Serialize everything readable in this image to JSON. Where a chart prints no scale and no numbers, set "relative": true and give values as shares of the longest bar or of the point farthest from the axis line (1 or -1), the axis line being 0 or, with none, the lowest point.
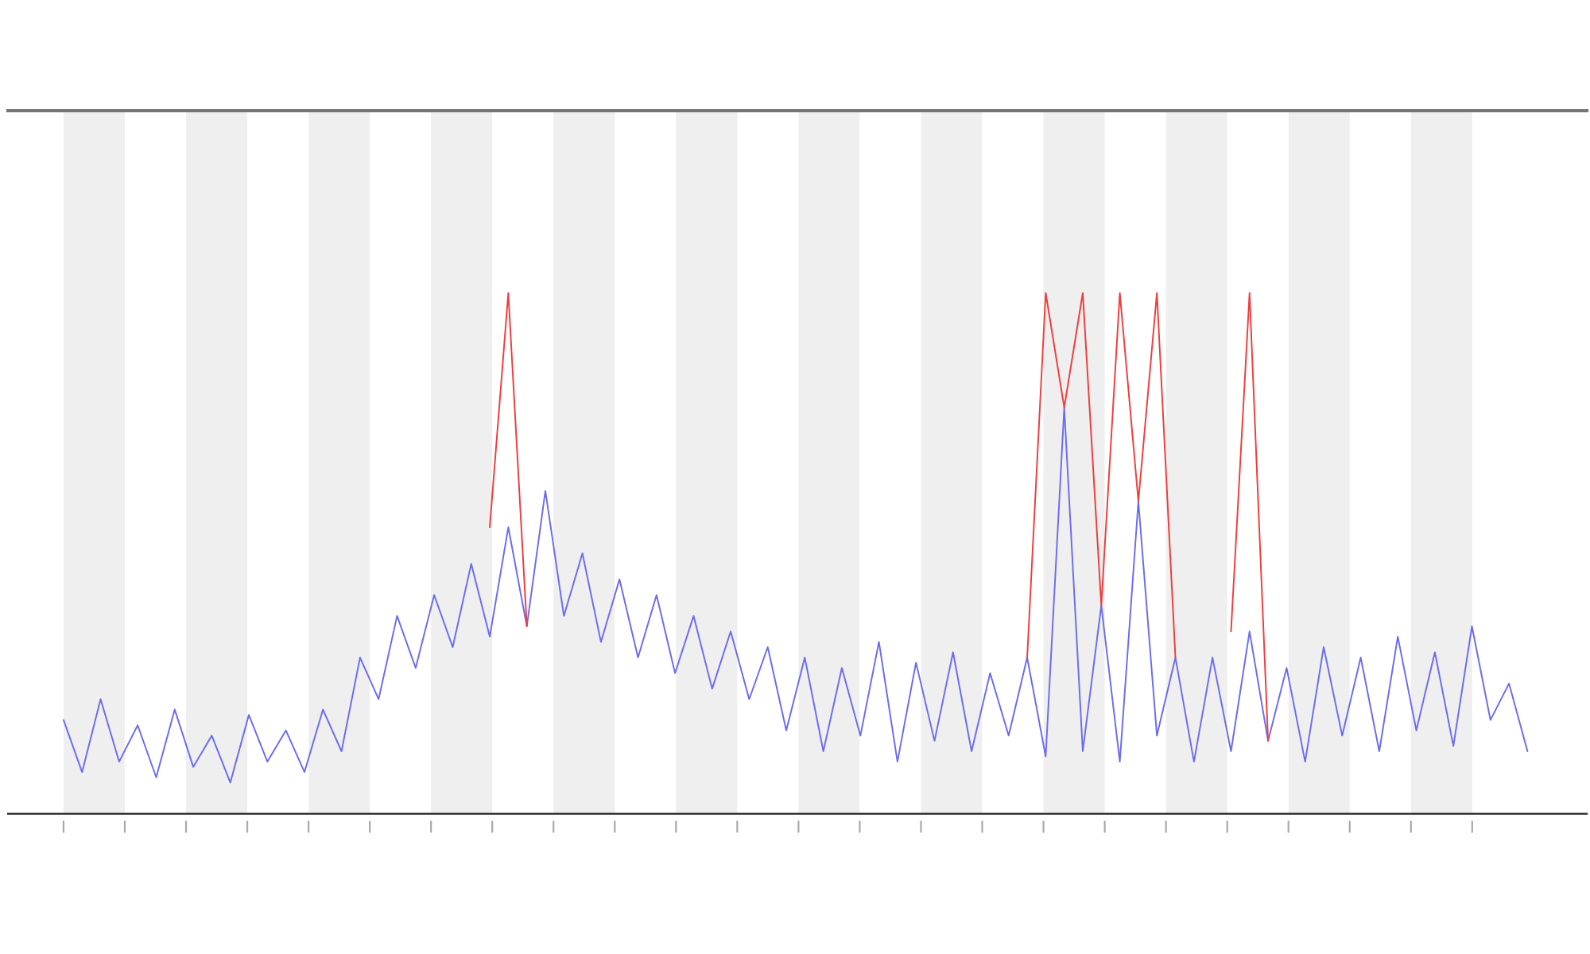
{
  "chart_data": {
    "type": "line",
    "relative": true,
    "grid": false,
    "categories": [
      null,
      null,
      null,
      null,
      null,
      null,
      null,
      null,
      null,
      null,
      null,
      null,
      null,
      null,
      null,
      null,
      null,
      null,
      null,
      null,
      null,
      null,
      null,
      null,
      null,
      null,
      null,
      null,
      null,
      null,
      null,
      null,
      null,
      null,
      null,
      null,
      null,
      null,
      null,
      null,
      null,
      null,
      null,
      null,
      null,
      null,
      null,
      null,
      null,
      null,
      null,
      null,
      null,
      null,
      null,
      null,
      null,
      null,
      null,
      null,
      null,
      null,
      null,
      null,
      null,
      null,
      null,
      null,
      null,
      null,
      null,
      null,
      null,
      null,
      null,
      null,
      null,
      null,
      null,
      null
    ],
    "series": [
      {
        "color": "#6b6bf0",
        "values": [
          0.18,
          0.08,
          0.22,
          0.1,
          0.17,
          0.07,
          0.2,
          0.09,
          0.15,
          0.06,
          0.19,
          0.1,
          0.16,
          0.08,
          0.2,
          0.12,
          0.3,
          0.22,
          0.38,
          0.28,
          0.42,
          0.32,
          0.48,
          0.34,
          0.55,
          0.36,
          0.62,
          0.38,
          0.5,
          0.33,
          0.45,
          0.3,
          0.42,
          0.27,
          0.38,
          0.24,
          0.35,
          0.22,
          0.32,
          0.16,
          0.3,
          0.12,
          0.28,
          0.15,
          0.33,
          0.1,
          0.29,
          0.14,
          0.31,
          0.12,
          0.27,
          0.15,
          0.3,
          0.11,
          0.78,
          0.12,
          0.4,
          0.1,
          0.6,
          0.15,
          0.3,
          0.1,
          0.3,
          0.12,
          0.35,
          0.14,
          0.28,
          0.1,
          0.32,
          0.15,
          0.3,
          0.12,
          0.34,
          0.16,
          0.31,
          0.13,
          0.36,
          0.18,
          0.25,
          0.12
        ]
      },
      {
        "color": "#f03c3c",
        "values": [
          null,
          null,
          null,
          null,
          null,
          null,
          null,
          null,
          null,
          null,
          null,
          null,
          null,
          null,
          null,
          null,
          null,
          null,
          null,
          null,
          null,
          null,
          null,
          0.55,
          1,
          0.36,
          null,
          null,
          null,
          null,
          null,
          null,
          null,
          null,
          null,
          null,
          null,
          null,
          null,
          null,
          null,
          null,
          null,
          null,
          null,
          null,
          null,
          null,
          null,
          null,
          null,
          null,
          0.3,
          1,
          0.78,
          1,
          0.4,
          1,
          0.6,
          1,
          0.3,
          null,
          null,
          0.35,
          1,
          0.14,
          null,
          null,
          null,
          null,
          null,
          null,
          null,
          null,
          null,
          null,
          null,
          null,
          null,
          null
        ]
      }
    ]
  }
}
